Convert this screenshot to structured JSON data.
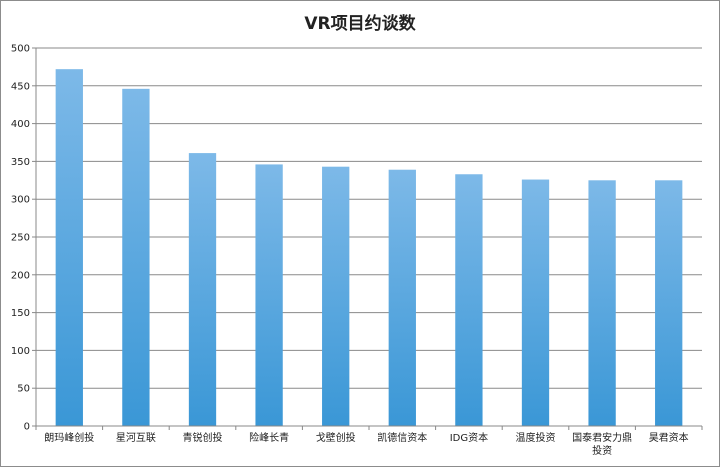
{
  "chart_data": {
    "type": "bar",
    "title": "VR项目约谈数",
    "xlabel": "",
    "ylabel": "",
    "ylim": [
      0,
      500
    ],
    "yticks": [
      0,
      50,
      100,
      150,
      200,
      250,
      300,
      350,
      400,
      450,
      500
    ],
    "grid": true,
    "legend": "none",
    "bar_color_top": "#7db9e8",
    "bar_color_bottom": "#3a97d6",
    "categories": [
      "朗玛峰创投",
      "星河互联",
      "青锐创投",
      "险峰长青",
      "戈壁创投",
      "凯德信资本",
      "IDG资本",
      "温度投资",
      "国泰君安力鼎投资",
      "昊君资本"
    ],
    "category_lines": [
      [
        "朗玛峰创投"
      ],
      [
        "星河互联"
      ],
      [
        "青锐创投"
      ],
      [
        "险峰长青"
      ],
      [
        "戈壁创投"
      ],
      [
        "凯德信资本"
      ],
      [
        "IDG资本"
      ],
      [
        "温度投资"
      ],
      [
        "国泰君安力鼎",
        "投资"
      ],
      [
        "昊君资本"
      ]
    ],
    "values": [
      472,
      446,
      361,
      346,
      343,
      339,
      333,
      326,
      325,
      325
    ]
  }
}
